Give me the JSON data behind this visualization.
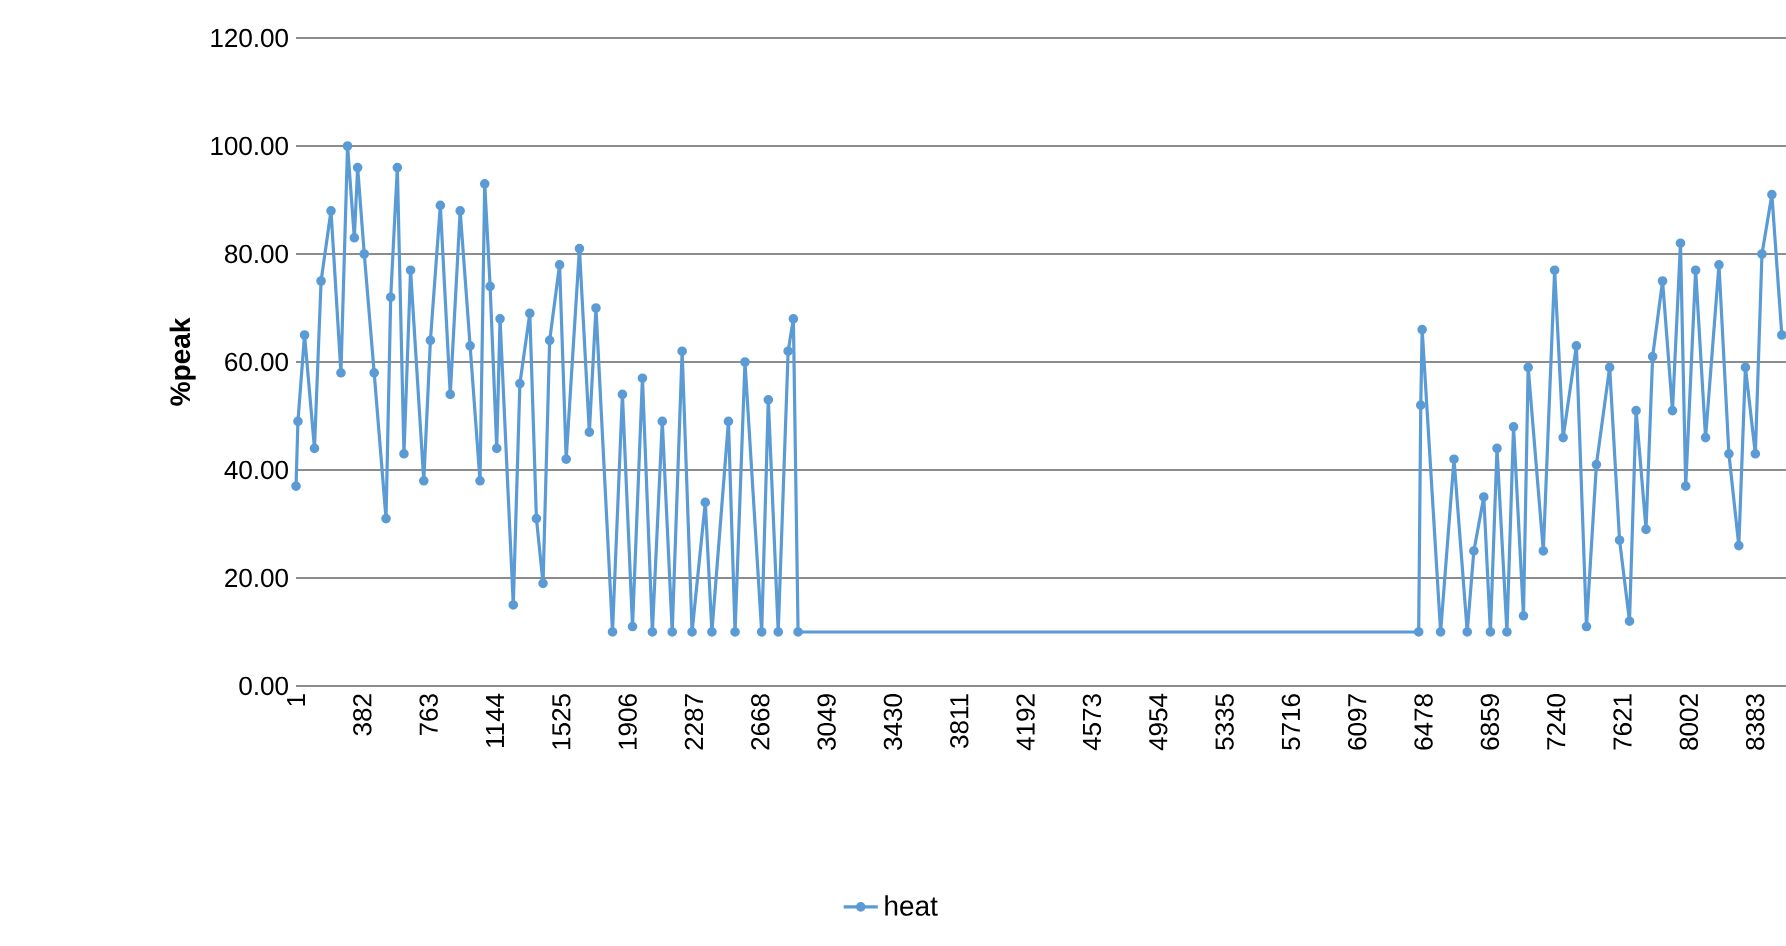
{
  "chart_data": {
    "type": "line",
    "ylabel": "%peak",
    "legend": "bottom",
    "grid": "y",
    "marker": "circle",
    "line_style": "solid",
    "xlim": [
      1,
      8560
    ],
    "ylim": [
      0,
      120
    ],
    "yticks": [
      {
        "value": 0,
        "label": "0.00"
      },
      {
        "value": 20,
        "label": "20.00"
      },
      {
        "value": 40,
        "label": "40.00"
      },
      {
        "value": 60,
        "label": "60.00"
      },
      {
        "value": 80,
        "label": "80.00"
      },
      {
        "value": 100,
        "label": "100.00"
      },
      {
        "value": 120,
        "label": "120.00"
      }
    ],
    "xticks": [
      1,
      382,
      763,
      1144,
      1525,
      1906,
      2287,
      2668,
      3049,
      3430,
      3811,
      4192,
      4573,
      4954,
      5335,
      5716,
      6097,
      6478,
      6859,
      7240,
      7621,
      8002,
      8383
    ],
    "series": [
      {
        "name": "heat",
        "color": "#5b9bd5",
        "x": [
          1,
          12,
          50,
          107,
          145,
          202,
          259,
          297,
          336,
          355,
          393,
          450,
          518,
          545,
          583,
          621,
          659,
          735,
          773,
          830,
          887,
          944,
          1001,
          1058,
          1085,
          1116,
          1154,
          1173,
          1249,
          1287,
          1344,
          1382,
          1420,
          1458,
          1515,
          1553,
          1629,
          1686,
          1724,
          1819,
          1876,
          1934,
          1991,
          2048,
          2105,
          2162,
          2219,
          2276,
          2352,
          2390,
          2485,
          2523,
          2580,
          2676,
          2714,
          2771,
          2828,
          2858,
          2885,
          6450,
          6462,
          6470,
          6576,
          6653,
          6729,
          6767,
          6824,
          6862,
          6900,
          6957,
          6995,
          7052,
          7079,
          7166,
          7231,
          7280,
          7356,
          7414,
          7471,
          7547,
          7604,
          7661,
          7699,
          7756,
          7794,
          7851,
          7908,
          7954,
          7984,
          8041,
          8098,
          8175,
          8232,
          8289,
          8327,
          8384,
          8422,
          8479,
          8536
        ],
        "values": [
          37,
          49,
          65,
          44,
          75,
          88,
          58,
          100,
          83,
          96,
          80,
          58,
          31,
          72,
          96,
          43,
          77,
          38,
          64,
          89,
          54,
          88,
          63,
          38,
          93,
          74,
          44,
          68,
          15,
          56,
          69,
          31,
          19,
          64,
          78,
          42,
          81,
          47,
          70,
          10,
          54,
          11,
          57,
          10,
          49,
          10,
          62,
          10,
          34,
          10,
          49,
          10,
          60,
          10,
          53,
          10,
          62,
          68,
          10,
          10,
          52,
          66,
          10,
          42,
          10,
          25,
          35,
          10,
          44,
          10,
          48,
          13,
          59,
          25,
          77,
          46,
          63,
          11,
          41,
          59,
          27,
          12,
          51,
          29,
          61,
          75,
          51,
          82,
          37,
          77,
          46,
          78,
          43,
          26,
          59,
          43,
          80,
          91,
          65
        ]
      }
    ]
  }
}
